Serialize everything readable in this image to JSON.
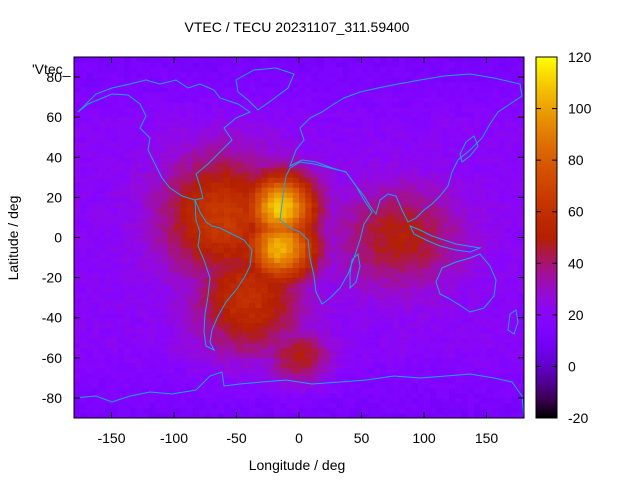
{
  "chart_data": {
    "type": "heatmap",
    "title": "VTEC / TECU 20231107_311.59400",
    "xlabel": "Longitude / deg",
    "ylabel": "Latitude / deg",
    "series_label": "'Vtec_",
    "xlim": [
      -180,
      180
    ],
    "ylim": [
      -90,
      90
    ],
    "xticks": [
      -150,
      -100,
      -50,
      0,
      50,
      100,
      150
    ],
    "yticks": [
      -80,
      -60,
      -40,
      -20,
      0,
      20,
      40,
      60,
      80
    ],
    "colorbar": {
      "min": -20,
      "max": 120,
      "ticks": [
        -20,
        0,
        20,
        40,
        60,
        80,
        100,
        120
      ],
      "colormap": "gnuplot-palette-rgb-7-5-15"
    },
    "grid": false,
    "tec_features": [
      {
        "description": "equatorial anomaly crest north",
        "lon": -15,
        "lat": 15,
        "value": 110
      },
      {
        "description": "equatorial anomaly crest south",
        "lon": -15,
        "lat": -5,
        "value": 105
      },
      {
        "description": "dayside enhancement",
        "lon": -60,
        "lat": 10,
        "value": 65
      },
      {
        "description": "south atlantic",
        "lon": -40,
        "lat": -30,
        "value": 60
      },
      {
        "description": "indian ocean tail",
        "lon": 80,
        "lat": 0,
        "value": 50
      },
      {
        "description": "antarctic patch",
        "lon": 0,
        "lat": -60,
        "value": 50
      },
      {
        "description": "background",
        "value": 20
      }
    ]
  }
}
